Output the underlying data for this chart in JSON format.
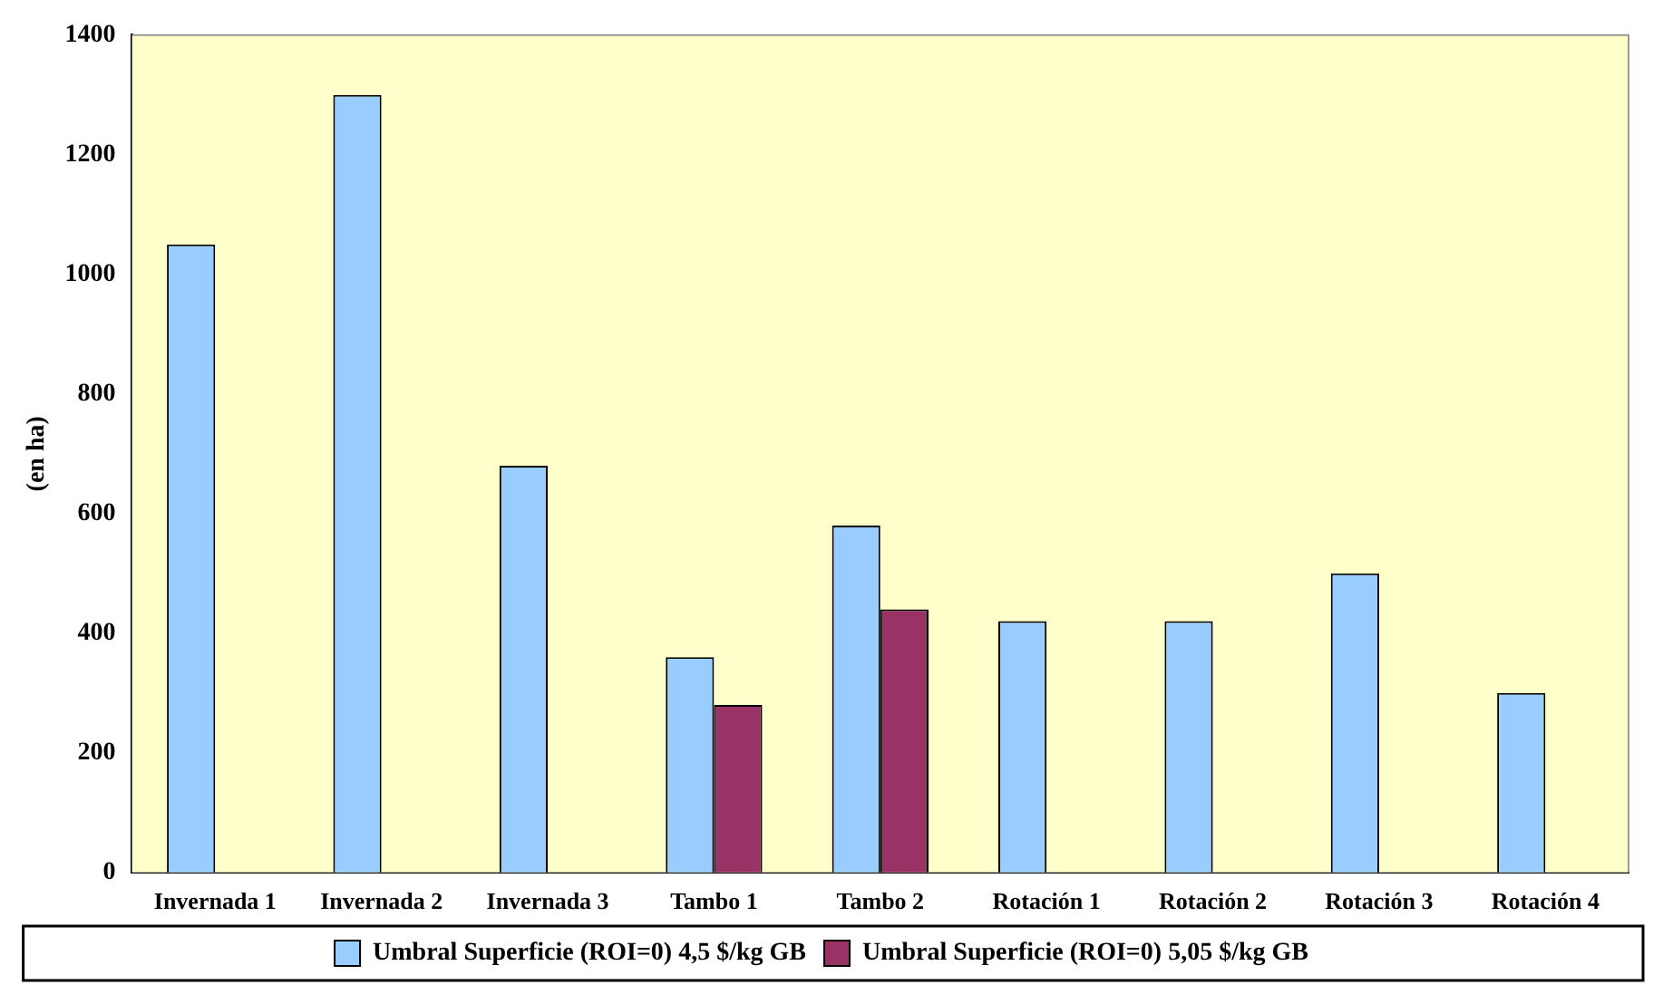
{
  "chart_data": {
    "type": "bar",
    "ylabel": "(en ha)",
    "categories": [
      "Invernada 1",
      "Invernada 2",
      "Invernada 3",
      "Tambo 1",
      "Tambo 2",
      "Rotación 1",
      "Rotación 2",
      "Rotación 3",
      "Rotación 4"
    ],
    "series": [
      {
        "name": "Umbral Superficie (ROI=0) 4,5 $/kg GB",
        "color": "#99ccff",
        "values": [
          1050,
          1300,
          680,
          360,
          580,
          420,
          420,
          500,
          300
        ]
      },
      {
        "name": "Umbral Superficie (ROI=0) 5,05 $/kg GB",
        "color": "#993366",
        "values": [
          null,
          null,
          null,
          280,
          440,
          null,
          null,
          null,
          null
        ]
      }
    ],
    "ylim": [
      0,
      1400
    ],
    "yticks": [
      0,
      200,
      400,
      600,
      800,
      1000,
      1200,
      1400
    ],
    "grid": false,
    "legend": "bottom"
  }
}
